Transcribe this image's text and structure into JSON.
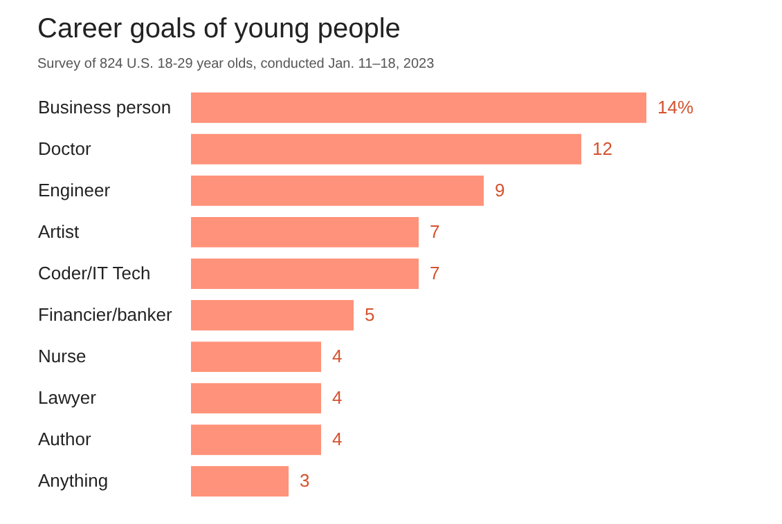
{
  "chart_data": {
    "type": "bar",
    "orientation": "horizontal",
    "title": "Career goals of young people",
    "subtitle": "Survey of 824 U.S. 18-29 year olds, conducted Jan. 11–18, 2023",
    "categories": [
      "Business person",
      "Doctor",
      "Engineer",
      "Artist",
      "Coder/IT Tech",
      "Financier/banker",
      "Nurse",
      "Lawyer",
      "Author",
      "Anything"
    ],
    "values": [
      14,
      12,
      9,
      7,
      7,
      5,
      4,
      4,
      4,
      3
    ],
    "value_labels": [
      "14%",
      "12",
      "9",
      "7",
      "7",
      "5",
      "4",
      "4",
      "4",
      "3"
    ],
    "color": "#ff927a"
  }
}
